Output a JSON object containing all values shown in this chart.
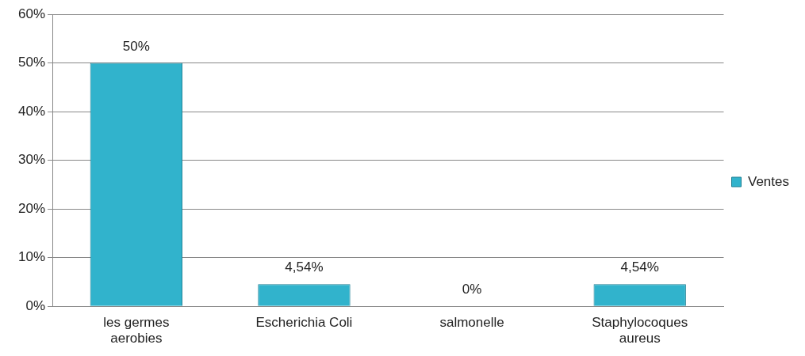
{
  "chart_data": {
    "type": "bar",
    "categories": [
      "les germes aerobies",
      "Escherichia Coli",
      "salmonelle",
      "Staphylocoques aureus"
    ],
    "series": [
      {
        "name": "Ventes",
        "color": "#31b3cc",
        "values": [
          50,
          4.54,
          0,
          4.54
        ],
        "value_labels": [
          "50%",
          "4,54%",
          "0%",
          "4,54%"
        ]
      }
    ],
    "ylim": [
      0,
      60
    ],
    "yticks": [
      {
        "value": 0,
        "label": "0%"
      },
      {
        "value": 10,
        "label": "10%"
      },
      {
        "value": 20,
        "label": "20%"
      },
      {
        "value": 30,
        "label": "30%"
      },
      {
        "value": 40,
        "label": "40%"
      },
      {
        "value": 50,
        "label": "50%"
      },
      {
        "value": 60,
        "label": "60%"
      }
    ],
    "grid": "y",
    "legend": "right"
  }
}
